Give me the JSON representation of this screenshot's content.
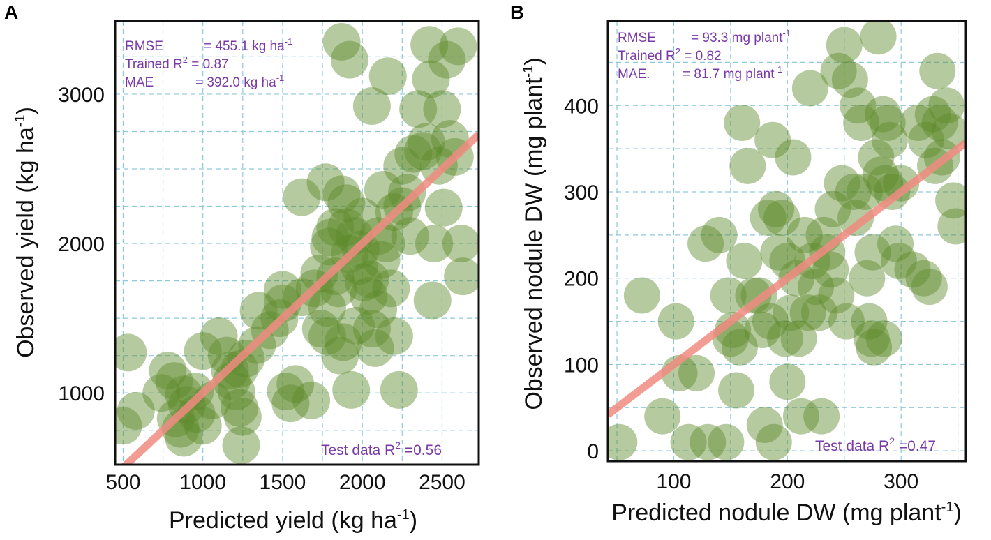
{
  "chart_data": [
    {
      "type": "scatter",
      "panel": "A",
      "xlabel": "Predicted yield (kg ha",
      "xlabel_sup": "-1",
      "xlabel_end": ")",
      "ylabel": "Observed yield (kg ha",
      "ylabel_sup": "-1",
      "ylabel_end": ")",
      "xlim": [
        450,
        2730
      ],
      "ylim": [
        520,
        3490
      ],
      "xticks": [
        500,
        1000,
        1500,
        2000,
        2500
      ],
      "xtick_labels": [
        "500",
        "1000",
        "1500",
        "2000",
        "2500"
      ],
      "yticks": [
        1000,
        2000,
        3000
      ],
      "ytick_labels": [
        "1000",
        "2000",
        "3000"
      ],
      "xgrid": [
        500,
        750,
        1000,
        1250,
        1500,
        1750,
        2000,
        2250,
        2500
      ],
      "ygrid": [
        750,
        1000,
        1250,
        1500,
        1750,
        2000,
        2250,
        2500,
        2750,
        3000,
        3250
      ],
      "grid": true,
      "stats": {
        "rmse_label": "RMSE",
        "rmse_value": "= 455.1 kg ha",
        "rmse_sup": "-1",
        "r2_label": "Trained R",
        "r2_sup": "2",
        "r2_value": " = 0.87",
        "mae_label": "MAE",
        "mae_value": "=  392.0 kg ha",
        "mae_sup": "-1",
        "test_label": "Test data R",
        "test_sup": "2",
        "test_value": " =0.56"
      },
      "fit_line": {
        "x": [
          450,
          2730
        ],
        "y": [
          450,
          2730
        ]
      },
      "points": [
        [
          530,
          1270
        ],
        [
          500,
          780
        ],
        [
          580,
          880
        ],
        [
          740,
          1000
        ],
        [
          780,
          1150
        ],
        [
          820,
          1080
        ],
        [
          830,
          830
        ],
        [
          860,
          760
        ],
        [
          880,
          700
        ],
        [
          900,
          920
        ],
        [
          950,
          1010
        ],
        [
          960,
          860
        ],
        [
          1000,
          780
        ],
        [
          1000,
          1280
        ],
        [
          1060,
          950
        ],
        [
          1100,
          1380
        ],
        [
          1150,
          1250
        ],
        [
          1180,
          1080
        ],
        [
          1210,
          1010
        ],
        [
          1230,
          1160
        ],
        [
          1230,
          900
        ],
        [
          1250,
          840
        ],
        [
          1270,
          1230
        ],
        [
          1240,
          650
        ],
        [
          1340,
          1320
        ],
        [
          1350,
          1550
        ],
        [
          1480,
          1500
        ],
        [
          1500,
          1690
        ],
        [
          1520,
          1010
        ],
        [
          1550,
          930
        ],
        [
          1580,
          1060
        ],
        [
          1620,
          1640
        ],
        [
          1680,
          950
        ],
        [
          1730,
          1800
        ],
        [
          1780,
          1380
        ],
        [
          1780,
          1570
        ],
        [
          1790,
          1980
        ],
        [
          1800,
          2040
        ],
        [
          1830,
          2110
        ],
        [
          1830,
          1780
        ],
        [
          1850,
          1700
        ],
        [
          1860,
          1250
        ],
        [
          1870,
          2330
        ],
        [
          1880,
          1340
        ],
        [
          1900,
          2270
        ],
        [
          1920,
          1930
        ],
        [
          1930,
          1020
        ],
        [
          1950,
          2050
        ],
        [
          1980,
          1850
        ],
        [
          2000,
          2180
        ],
        [
          2040,
          1650
        ],
        [
          2050,
          1760
        ],
        [
          2060,
          1430
        ],
        [
          2080,
          1300
        ],
        [
          2100,
          1560
        ],
        [
          2120,
          1890
        ],
        [
          2130,
          2360
        ],
        [
          2150,
          2000
        ],
        [
          2180,
          1700
        ],
        [
          2200,
          1380
        ],
        [
          2200,
          2210
        ],
        [
          2230,
          1020
        ],
        [
          2250,
          2520
        ],
        [
          2280,
          2340
        ],
        [
          2300,
          2050
        ],
        [
          2320,
          2600
        ],
        [
          2350,
          2900
        ],
        [
          2380,
          2620
        ],
        [
          2400,
          2680
        ],
        [
          2420,
          3330
        ],
        [
          2430,
          3100
        ],
        [
          2440,
          1620
        ],
        [
          2450,
          2000
        ],
        [
          2480,
          2520
        ],
        [
          2500,
          2900
        ],
        [
          2510,
          2240
        ],
        [
          2530,
          3230
        ],
        [
          2550,
          2700
        ],
        [
          2580,
          2580
        ],
        [
          2600,
          3320
        ],
        [
          2620,
          2000
        ],
        [
          2630,
          1780
        ],
        [
          1870,
          3350
        ],
        [
          1920,
          3230
        ],
        [
          2060,
          2920
        ],
        [
          2160,
          3120
        ],
        [
          1620,
          2310
        ],
        [
          1770,
          2410
        ],
        [
          1900,
          2110
        ],
        [
          1990,
          1960
        ],
        [
          1740,
          1430
        ],
        [
          1960,
          1450
        ],
        [
          2010,
          1740
        ],
        [
          1500,
          1600
        ],
        [
          1170,
          1150
        ],
        [
          880,
          990
        ],
        [
          1420,
          1420
        ],
        [
          1700,
          1700
        ],
        [
          2100,
          2050
        ],
        [
          2250,
          2250
        ]
      ]
    },
    {
      "type": "scatter",
      "panel": "B",
      "xlabel": "Predicted nodule DW (mg plant",
      "xlabel_sup": "-1",
      "xlabel_end": ")",
      "ylabel": "Observed nodule DW (mg plant",
      "ylabel_sup": "-1",
      "ylabel_end": ")",
      "xlim": [
        42,
        357
      ],
      "ylim": [
        -12,
        498
      ],
      "xticks": [
        100,
        200,
        300
      ],
      "xtick_labels": [
        "100",
        "200",
        "300"
      ],
      "yticks": [
        0,
        100,
        200,
        300,
        400
      ],
      "ytick_labels": [
        "0",
        "100",
        "200",
        "300",
        "400"
      ],
      "xgrid": [
        50,
        100,
        150,
        200,
        250,
        300,
        350
      ],
      "ygrid": [
        0,
        50,
        100,
        150,
        200,
        250,
        300,
        350,
        400,
        450
      ],
      "grid": true,
      "stats": {
        "rmse_label": "RMSE",
        "rmse_value": "= 93.3 mg plant",
        "rmse_sup": "-1",
        "r2_label": "Trained R",
        "r2_sup": "2",
        "r2_value": " = 0.82",
        "mae_label": "MAE.",
        "mae_value": "=  81.7 mg plant",
        "mae_sup": "-1",
        "test_label": "Test data R",
        "test_sup": "2",
        "test_value": " =0.47"
      },
      "fit_line": {
        "x": [
          42,
          357
        ],
        "y": [
          42,
          357
        ]
      },
      "points": [
        [
          52,
          10
        ],
        [
          90,
          40
        ],
        [
          72,
          180
        ],
        [
          102,
          150
        ],
        [
          105,
          90
        ],
        [
          113,
          10
        ],
        [
          120,
          90
        ],
        [
          128,
          240
        ],
        [
          130,
          10
        ],
        [
          140,
          250
        ],
        [
          146,
          10
        ],
        [
          148,
          180
        ],
        [
          150,
          130
        ],
        [
          152,
          140
        ],
        [
          155,
          70
        ],
        [
          158,
          120
        ],
        [
          160,
          380
        ],
        [
          162,
          220
        ],
        [
          165,
          330
        ],
        [
          170,
          180
        ],
        [
          175,
          180
        ],
        [
          178,
          140
        ],
        [
          180,
          30
        ],
        [
          183,
          270
        ],
        [
          185,
          150
        ],
        [
          187,
          360
        ],
        [
          188,
          10
        ],
        [
          190,
          280
        ],
        [
          192,
          230
        ],
        [
          195,
          270
        ],
        [
          198,
          130
        ],
        [
          200,
          220
        ],
        [
          200,
          80
        ],
        [
          203,
          160
        ],
        [
          205,
          340
        ],
        [
          208,
          200
        ],
        [
          212,
          40
        ],
        [
          215,
          250
        ],
        [
          218,
          160
        ],
        [
          220,
          420
        ],
        [
          222,
          220
        ],
        [
          225,
          190
        ],
        [
          228,
          160
        ],
        [
          230,
          40
        ],
        [
          232,
          250
        ],
        [
          235,
          230
        ],
        [
          238,
          210
        ],
        [
          240,
          280
        ],
        [
          243,
          180
        ],
        [
          245,
          440
        ],
        [
          248,
          310
        ],
        [
          250,
          470
        ],
        [
          252,
          150
        ],
        [
          255,
          430
        ],
        [
          258,
          300
        ],
        [
          260,
          270
        ],
        [
          262,
          400
        ],
        [
          265,
          380
        ],
        [
          268,
          300
        ],
        [
          270,
          200
        ],
        [
          272,
          150
        ],
        [
          274,
          130
        ],
        [
          275,
          230
        ],
        [
          276,
          120
        ],
        [
          278,
          340
        ],
        [
          280,
          480
        ],
        [
          282,
          320
        ],
        [
          284,
          390
        ],
        [
          286,
          310
        ],
        [
          288,
          380
        ],
        [
          290,
          360
        ],
        [
          292,
          300
        ],
        [
          295,
          240
        ],
        [
          298,
          220
        ],
        [
          300,
          310
        ],
        [
          310,
          210
        ],
        [
          315,
          380
        ],
        [
          320,
          200
        ],
        [
          322,
          360
        ],
        [
          325,
          190
        ],
        [
          328,
          390
        ],
        [
          330,
          330
        ],
        [
          332,
          440
        ],
        [
          334,
          380
        ],
        [
          336,
          340
        ],
        [
          340,
          400
        ],
        [
          343,
          370
        ],
        [
          346,
          290
        ],
        [
          348,
          260
        ],
        [
          285,
          130
        ],
        [
          210,
          130
        ]
      ]
    }
  ],
  "panels": {
    "a": {
      "letter": "A"
    },
    "b": {
      "letter": "B"
    }
  },
  "colors": {
    "point": "#5e8a2a",
    "fit": "#f08b80",
    "grid": "#8fc9dc",
    "stat_text": "#7a3aa8"
  }
}
